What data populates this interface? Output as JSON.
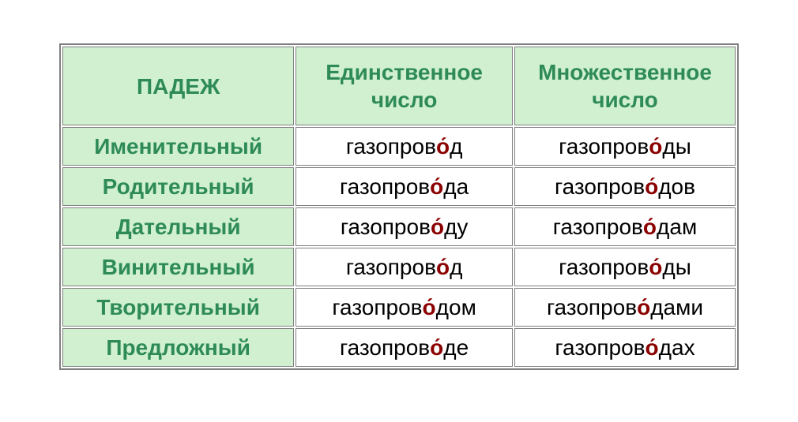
{
  "table": {
    "header": {
      "case": "ПАДЕЖ",
      "singular": "Единственное число",
      "plural": "Множественное число"
    },
    "cases": [
      {
        "name": "Именительный",
        "singular": {
          "pre": "газопров",
          "stress": "о́",
          "post": "д"
        },
        "plural": {
          "pre": "газопров",
          "stress": "о́",
          "post": "ды"
        }
      },
      {
        "name": "Родительный",
        "singular": {
          "pre": "газопров",
          "stress": "о́",
          "post": "да"
        },
        "plural": {
          "pre": "газопров",
          "stress": "о́",
          "post": "дов"
        }
      },
      {
        "name": "Дательный",
        "singular": {
          "pre": "газопров",
          "stress": "о́",
          "post": "ду"
        },
        "plural": {
          "pre": "газопров",
          "stress": "о́",
          "post": "дам"
        }
      },
      {
        "name": "Винительный",
        "singular": {
          "pre": "газопров",
          "stress": "о́",
          "post": "д"
        },
        "plural": {
          "pre": "газопров",
          "stress": "о́",
          "post": "ды"
        }
      },
      {
        "name": "Творительный",
        "singular": {
          "pre": "газопров",
          "stress": "о́",
          "post": "дом"
        },
        "plural": {
          "pre": "газопров",
          "stress": "о́",
          "post": "дами"
        }
      },
      {
        "name": "Предложный",
        "singular": {
          "pre": "газопров",
          "stress": "о́",
          "post": "де"
        },
        "plural": {
          "pre": "газопров",
          "stress": "о́",
          "post": "дах"
        }
      }
    ],
    "colors": {
      "header_bg": "#d0f0d0",
      "header_text": "#2e8b57",
      "cell_bg": "#ffffff",
      "cell_text": "#000000",
      "stress": "#8b0000",
      "border": "#808080"
    },
    "font": {
      "family": "Arial",
      "size_pt": 21,
      "header_weight": "bold"
    }
  }
}
